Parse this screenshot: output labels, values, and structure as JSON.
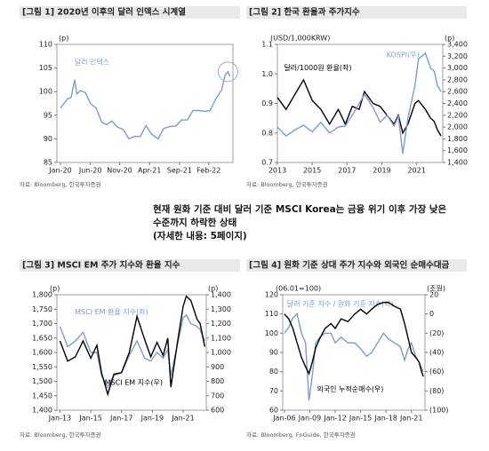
{
  "chart_data": [
    {
      "type": "line",
      "title": "[그림 1] 2020년 이후의 달러 인덱스 시계열",
      "source": "자료: Bloomberg, 한국투자증권",
      "y_unit": "(p)",
      "x": [
        2020.0,
        2020.05,
        2020.1,
        2020.15,
        2020.2,
        2020.23,
        2020.28,
        2020.35,
        2020.42,
        2020.5,
        2020.58,
        2020.65,
        2020.72,
        2020.8,
        2020.88,
        2020.96,
        2021.04,
        2021.12,
        2021.2,
        2021.28,
        2021.37,
        2021.45,
        2021.53,
        2021.62,
        2021.7,
        2021.78,
        2021.86,
        2021.94,
        2022.02,
        2022.1,
        2022.18,
        2022.26,
        2022.31,
        2022.35,
        2022.38
      ],
      "xlim": [
        2019.95,
        2022.42
      ],
      "xticks": [
        {
          "value": 2020.0,
          "label": "Jan-20"
        },
        {
          "value": 2020.42,
          "label": "Jun-20"
        },
        {
          "value": 2020.83,
          "label": "Nov-20"
        },
        {
          "value": 2021.25,
          "label": "Apr-21"
        },
        {
          "value": 2021.67,
          "label": "Sep-21"
        },
        {
          "value": 2022.08,
          "label": "Feb-22"
        }
      ],
      "ylim": [
        85,
        110
      ],
      "yticks": [
        85,
        90,
        95,
        100,
        105,
        110
      ],
      "series": [
        {
          "name": "달러 인덱스",
          "color": "#7f9cc8",
          "values": [
            96.5,
            97.5,
            98.5,
            98.8,
            102.5,
            99.5,
            100.2,
            99.8,
            97.5,
            96.5,
            93.5,
            93.0,
            93.8,
            92.5,
            92.0,
            90.0,
            90.5,
            90.5,
            92.8,
            91.0,
            90.0,
            92.2,
            92.6,
            92.7,
            94.0,
            94.0,
            96.0,
            96.0,
            95.8,
            96.0,
            98.5,
            100.3,
            103.5,
            104.2,
            103.2
          ]
        }
      ]
    },
    {
      "type": "line",
      "title": "[그림 2] 한국 환율과 주가지수",
      "source": "자료: Bloomberg, 한국투자증권",
      "y_unit": "(USD/1,000KRW)",
      "y2_unit": "(p)",
      "x": [
        2013.0,
        2013.5,
        2014.0,
        2014.5,
        2015.0,
        2015.5,
        2016.0,
        2016.5,
        2016.9,
        2017.3,
        2017.7,
        2018.0,
        2018.5,
        2018.9,
        2019.3,
        2019.7,
        2019.95,
        2020.2,
        2020.5,
        2020.9,
        2021.1,
        2021.5,
        2021.8,
        2022.0,
        2022.2,
        2022.4
      ],
      "xlim": [
        2013,
        2022.5
      ],
      "xticks": [
        2013,
        2015,
        2017,
        2019,
        2021
      ],
      "ylim": [
        0.7,
        1.1
      ],
      "yticks": [
        0.7,
        0.8,
        0.9,
        {
          "value": 1,
          "label": "1.0"
        },
        1.1
      ],
      "y2lim": [
        1400,
        3400
      ],
      "y2ticks": [
        {
          "value": 1400,
          "label": "1,400"
        },
        {
          "value": 1600,
          "label": "1,600"
        },
        {
          "value": 1800,
          "label": "1,800"
        },
        {
          "value": 2000,
          "label": "2,000"
        },
        {
          "value": 2200,
          "label": "2,200"
        },
        {
          "value": 2400,
          "label": "2,400"
        },
        {
          "value": 2600,
          "label": "2,600"
        },
        {
          "value": 2800,
          "label": "2,800"
        },
        {
          "value": 3000,
          "label": "3,000"
        },
        {
          "value": 3200,
          "label": "3,200"
        },
        {
          "value": 3400,
          "label": "3,400"
        }
      ],
      "series": [
        {
          "name": "달러/1000원 환율(좌)",
          "color": "#000000",
          "values": [
            0.92,
            0.88,
            0.93,
            0.98,
            0.91,
            0.88,
            0.83,
            0.88,
            0.83,
            0.89,
            0.88,
            0.94,
            0.9,
            0.89,
            0.86,
            0.83,
            0.86,
            0.8,
            0.83,
            0.9,
            0.91,
            0.88,
            0.85,
            0.84,
            0.81,
            0.79
          ]
        },
        {
          "name": "KOSPI(우)",
          "color": "#7f9cc8",
          "axis": "y2",
          "values": [
            2000,
            1850,
            1950,
            2030,
            1920,
            2080,
            1900,
            2000,
            2020,
            2200,
            2400,
            2550,
            2330,
            2080,
            2200,
            2020,
            2180,
            1550,
            2150,
            2700,
            3150,
            3250,
            3000,
            2950,
            2700,
            2600
          ]
        }
      ]
    },
    {
      "type": "line",
      "title": "[그림 3] MSCI EM 주가 지수와 환율 지수",
      "source": "자료: Bloomberg, 한국투자증권",
      "y_unit": "(p)",
      "y2_unit": "(p)",
      "x": [
        2013.0,
        2013.5,
        2014.0,
        2014.5,
        2015.0,
        2015.4,
        2015.7,
        2016.1,
        2016.5,
        2017.0,
        2017.5,
        2018.0,
        2018.5,
        2018.9,
        2019.3,
        2019.7,
        2020.0,
        2020.2,
        2020.6,
        2021.0,
        2021.2,
        2021.5,
        2021.9,
        2022.1,
        2022.4
      ],
      "xlim": [
        2012.8,
        2022.5
      ],
      "xticks": [
        {
          "value": 2013,
          "label": "Jan-13"
        },
        {
          "value": 2015,
          "label": "Jan-15"
        },
        {
          "value": 2017,
          "label": "Jan-17"
        },
        {
          "value": 2019,
          "label": "Jan-19"
        },
        {
          "value": 2021,
          "label": "Jan-21"
        }
      ],
      "ylim": [
        1400,
        1800
      ],
      "yticks": [
        {
          "value": 1400,
          "label": "1,400"
        },
        {
          "value": 1450,
          "label": "1,450"
        },
        {
          "value": 1500,
          "label": "1,500"
        },
        {
          "value": 1550,
          "label": "1,550"
        },
        {
          "value": 1600,
          "label": "1,600"
        },
        {
          "value": 1650,
          "label": "1,650"
        },
        {
          "value": 1700,
          "label": "1,700"
        },
        {
          "value": 1750,
          "label": "1,750"
        },
        {
          "value": 1800,
          "label": "1,800"
        }
      ],
      "y2lim": [
        600,
        1400
      ],
      "y2ticks": [
        600,
        700,
        800,
        900,
        {
          "value": 1000,
          "label": "1,000"
        },
        {
          "value": 1100,
          "label": "1,100"
        },
        {
          "value": 1200,
          "label": "1,200"
        },
        {
          "value": 1300,
          "label": "1,300"
        },
        {
          "value": 1400,
          "label": "1,400"
        }
      ],
      "series": [
        {
          "name": "MSCI EM 환율 지수(좌)",
          "color": "#7f9cc8",
          "values": [
            1690,
            1620,
            1640,
            1670,
            1600,
            1600,
            1520,
            1480,
            1520,
            1530,
            1590,
            1640,
            1580,
            1570,
            1600,
            1580,
            1610,
            1520,
            1620,
            1720,
            1730,
            1700,
            1690,
            1680,
            1640
          ]
        },
        {
          "name": "MSCI EM 지수(우)",
          "color": "#000000",
          "axis": "y2",
          "values": [
            1080,
            940,
            970,
            1080,
            960,
            1050,
            860,
            710,
            850,
            860,
            1000,
            1250,
            1090,
            970,
            1070,
            980,
            1100,
            760,
            1050,
            1320,
            1390,
            1360,
            1230,
            1200,
            1040
          ]
        }
      ]
    },
    {
      "type": "line",
      "title": "[그림 4] 원화 기준 상대 주가 지수와 외국인 순매수대금",
      "source": "자료: Bloomberg, FnGuide, 한국투자증권",
      "y_unit": "(06.01=100)",
      "y2_unit": "(조원)",
      "x": [
        2006.0,
        2006.5,
        2007.0,
        2007.5,
        2008.0,
        2008.5,
        2008.9,
        2009.3,
        2009.7,
        2010.2,
        2010.8,
        2011.5,
        2012.0,
        2012.7,
        2013.5,
        2014.3,
        2015.0,
        2015.7,
        2016.3,
        2017.0,
        2017.7,
        2018.3,
        2019.0,
        2019.7,
        2020.2,
        2020.6,
        2021.0,
        2021.5,
        2021.9,
        2022.2,
        2022.4
      ],
      "xlim": [
        2005.8,
        2022.6
      ],
      "xticks": [
        {
          "value": 2006,
          "label": "Jan-06"
        },
        {
          "value": 2009,
          "label": "Jan-09"
        },
        {
          "value": 2012,
          "label": "Jan-12"
        },
        {
          "value": 2015,
          "label": "Jan-15"
        },
        {
          "value": 2018,
          "label": "Jan-18"
        },
        {
          "value": 2021,
          "label": "Jan-21"
        }
      ],
      "ylim": [
        60,
        120
      ],
      "yticks": [
        60,
        70,
        80,
        90,
        100,
        110,
        120
      ],
      "y2lim": [
        -100,
        20
      ],
      "y2ticks": [
        {
          "value": -100,
          "label": "(100)"
        },
        {
          "value": -80,
          "label": "(80)"
        },
        {
          "value": -60,
          "label": "(60)"
        },
        {
          "value": -40,
          "label": "(40)"
        },
        {
          "value": -20,
          "label": "(20)"
        },
        0,
        20
      ],
      "series": [
        {
          "name": "달러 기준 지수 / 원화 기준 지수(좌)",
          "color": "#7f9cc8",
          "values": [
            100,
            103,
            108,
            110,
            100,
            95,
            65,
            78,
            95,
            98,
            100,
            100,
            95,
            98,
            95,
            95,
            92,
            88,
            90,
            95,
            100,
            97,
            95,
            93,
            86,
            92,
            95,
            88,
            85,
            82,
            80
          ]
        },
        {
          "name": "외국인 누적순매수(우)",
          "color": "#000000",
          "axis": "y2",
          "values": [
            0,
            -5,
            -15,
            -30,
            -45,
            -55,
            -62,
            -50,
            -35,
            -25,
            -15,
            -10,
            -15,
            -5,
            -8,
            0,
            5,
            0,
            5,
            10,
            12,
            12,
            8,
            5,
            -10,
            -25,
            -40,
            -45,
            -50,
            -60,
            -65
          ]
        }
      ]
    }
  ],
  "note": {
    "lines": [
      "현재 원화 기준 대비 달러 기준 MSCI Korea는 금융 위기 이후 가장 낮은",
      "수준까지 하락한 상태",
      "(자세한 내용: 5페이지)"
    ]
  }
}
